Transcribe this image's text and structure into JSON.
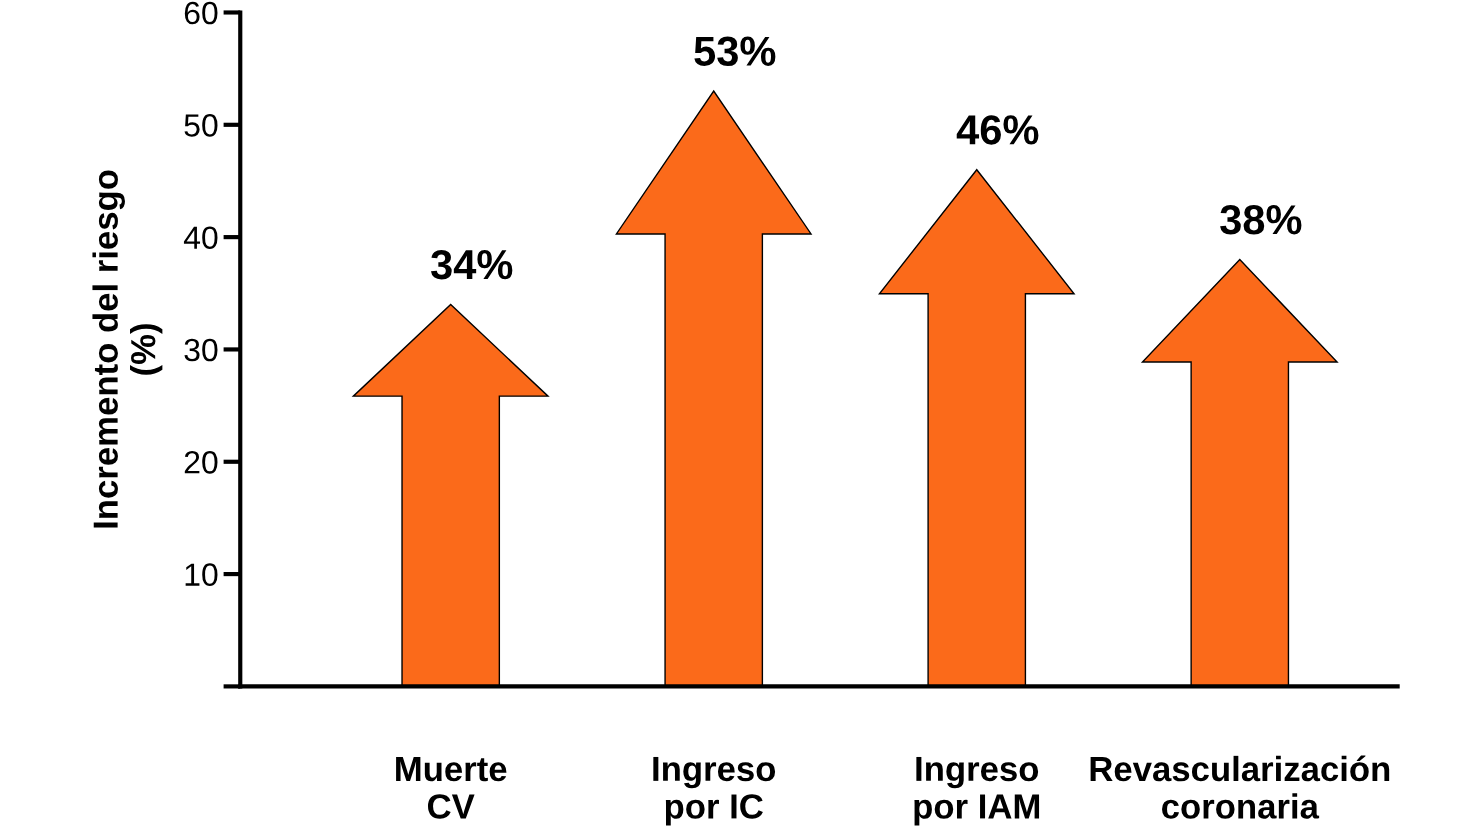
{
  "chart_data": {
    "type": "bar",
    "ylabel": "Incremento del riesgo\n(%)",
    "categories": [
      "Muerte\nCV",
      "Ingreso\npor IC",
      "Ingreso\npor IAM",
      "Revascularización\ncoronaria"
    ],
    "values": [
      34,
      53,
      46,
      38
    ],
    "value_labels": [
      "34%",
      "53%",
      "46%",
      "38%"
    ],
    "color": "#fb6a1a",
    "ylim": [
      0,
      60
    ],
    "yticks": [
      {
        "value": 0,
        "label": null
      },
      10,
      20,
      30,
      40,
      50,
      60
    ],
    "grid": false,
    "legend": false
  }
}
